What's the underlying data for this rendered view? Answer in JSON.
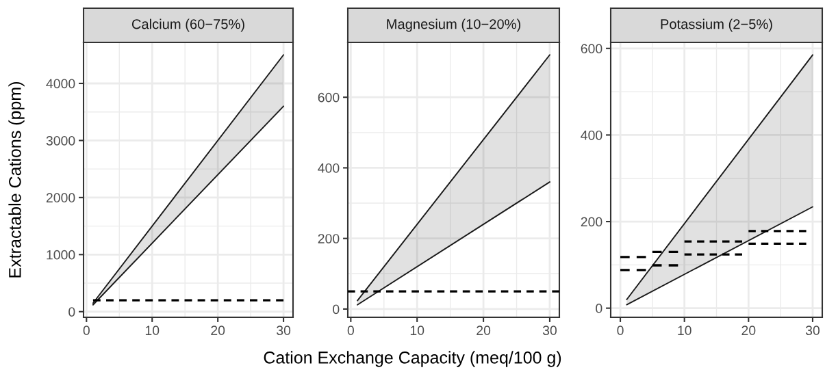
{
  "chart_data": [
    {
      "type": "line",
      "title": "Calcium (60−75%)",
      "ylabel": "Extractable Cations (ppm)",
      "xlim": [
        -0.45,
        31.45
      ],
      "xticks": [
        0,
        10,
        20,
        30
      ],
      "ylim": [
        -99,
        4719
      ],
      "yticks": [
        0,
        1000,
        2000,
        3000,
        4000
      ],
      "grid": true,
      "series": [
        {
          "x": [
            1,
            30
          ],
          "values": [
            120,
            3600
          ],
          "lower": [
            120,
            3600
          ],
          "upper": [
            150,
            4500
          ],
          "color": "#1a1a1a",
          "line_style": "solid"
        },
        {
          "x": [
            1,
            30
          ],
          "values": [
            150,
            4500
          ],
          "color": "#1a1a1a",
          "line_style": "solid"
        },
        {
          "x": [
            1,
            30
          ],
          "values": [
            200,
            200
          ],
          "color": "#000000",
          "line_style": "dashed"
        }
      ]
    },
    {
      "type": "line",
      "title": "Magnesium (10−20%)",
      "xlabel": "Cation Exchange Capacity (meq/100 g)",
      "xlim": [
        -0.45,
        31.45
      ],
      "xticks": [
        0,
        10,
        20,
        30
      ],
      "ylim": [
        -23.4,
        755.4
      ],
      "yticks": [
        0,
        200,
        400,
        600
      ],
      "grid": true,
      "ref_lines": [
        {
          "axis": "y",
          "value": 50,
          "color": "#000000",
          "line_style": "dashed"
        }
      ],
      "series": [
        {
          "x": [
            1,
            30
          ],
          "values": [
            12,
            360
          ],
          "lower": [
            12,
            360
          ],
          "upper": [
            24,
            720
          ],
          "color": "#1a1a1a",
          "line_style": "solid"
        },
        {
          "x": [
            1,
            30
          ],
          "values": [
            24,
            720
          ],
          "color": "#1a1a1a",
          "line_style": "solid"
        }
      ]
    },
    {
      "type": "line",
      "title": "Potassium (2−5%)",
      "xlim": [
        -1.5,
        31.5
      ],
      "xticks": [
        0,
        10,
        20,
        30
      ],
      "ylim": [
        -21.1,
        613.9
      ],
      "yticks": [
        0,
        200,
        400,
        600
      ],
      "grid": true,
      "series": [
        {
          "x": [
            1,
            30
          ],
          "values": [
            8,
            234
          ],
          "lower": [
            8,
            234
          ],
          "upper": [
            20,
            585
          ],
          "color": "#1a1a1a",
          "line_style": "solid"
        },
        {
          "x": [
            1,
            30
          ],
          "values": [
            20,
            585
          ],
          "color": "#1a1a1a",
          "line_style": "solid"
        },
        {
          "x": [
            0,
            4
          ],
          "values": [
            118,
            118
          ],
          "color": "#000000",
          "line_style": "dashed"
        },
        {
          "x": [
            0,
            4
          ],
          "values": [
            88,
            88
          ],
          "color": "#000000",
          "line_style": "dashed"
        },
        {
          "x": [
            5,
            9
          ],
          "values": [
            130,
            130
          ],
          "color": "#000000",
          "line_style": "dashed"
        },
        {
          "x": [
            5,
            9
          ],
          "values": [
            99,
            99
          ],
          "color": "#000000",
          "line_style": "dashed"
        },
        {
          "x": [
            10,
            19
          ],
          "values": [
            154,
            154
          ],
          "color": "#000000",
          "line_style": "dashed"
        },
        {
          "x": [
            10,
            19
          ],
          "values": [
            124,
            124
          ],
          "color": "#000000",
          "line_style": "dashed"
        },
        {
          "x": [
            20,
            29
          ],
          "values": [
            178,
            178
          ],
          "color": "#000000",
          "line_style": "dashed"
        },
        {
          "x": [
            20,
            29
          ],
          "values": [
            149,
            149
          ],
          "color": "#000000",
          "line_style": "dashed"
        }
      ]
    }
  ]
}
